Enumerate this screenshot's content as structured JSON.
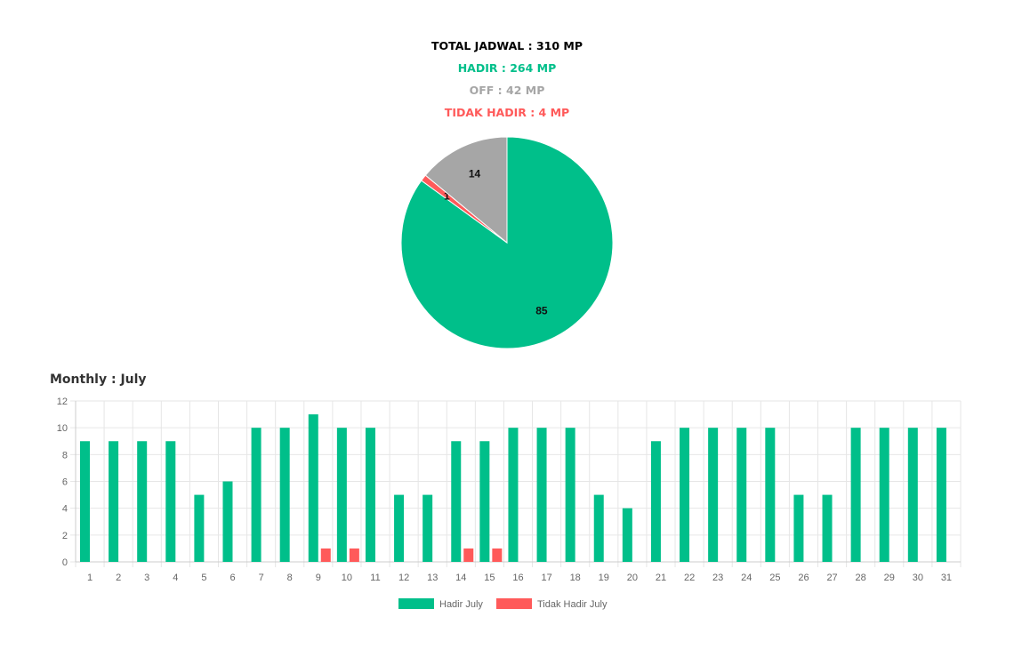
{
  "summary": {
    "total_label": "TOTAL JADWAL : 310 MP",
    "hadir_label": "HADIR : 264 MP",
    "off_label": "OFF : 42 MP",
    "tidak_hadir_label": "TIDAK HADIR : 4 MP"
  },
  "colors": {
    "hadir": "#00bf8a",
    "off": "#a6a6a6",
    "tidak_hadir": "#ff5a5a",
    "total": "#000000",
    "grid": "#e6e6e6",
    "axis_text": "#666666"
  },
  "monthly_title": "Monthly : July",
  "chart_data": [
    {
      "type": "pie",
      "slices": [
        {
          "key": "hadir",
          "value": 85,
          "label": "85"
        },
        {
          "key": "tidak_hadir",
          "value": 1,
          "label": "1"
        },
        {
          "key": "off",
          "value": 14,
          "label": "14"
        }
      ]
    },
    {
      "type": "bar",
      "categories": [
        "1",
        "2",
        "3",
        "4",
        "5",
        "6",
        "7",
        "8",
        "9",
        "10",
        "11",
        "12",
        "13",
        "14",
        "15",
        "16",
        "17",
        "18",
        "19",
        "20",
        "21",
        "22",
        "23",
        "24",
        "25",
        "26",
        "27",
        "28",
        "29",
        "30",
        "31"
      ],
      "series": [
        {
          "name": "Hadir July",
          "key": "hadir",
          "values": [
            9,
            9,
            9,
            9,
            5,
            6,
            10,
            10,
            11,
            10,
            10,
            5,
            5,
            9,
            9,
            10,
            10,
            10,
            5,
            4,
            9,
            10,
            10,
            10,
            10,
            5,
            5,
            10,
            10,
            10,
            10
          ]
        },
        {
          "name": "Tidak Hadir July",
          "key": "tidak_hadir",
          "values": [
            0,
            0,
            0,
            0,
            0,
            0,
            0,
            0,
            1,
            1,
            0,
            0,
            0,
            1,
            1,
            0,
            0,
            0,
            0,
            0,
            0,
            0,
            0,
            0,
            0,
            0,
            0,
            0,
            0,
            0,
            0
          ]
        }
      ],
      "ylim": [
        0,
        12
      ],
      "yticks": [
        "0",
        "2",
        "4",
        "6",
        "8",
        "10",
        "12"
      ],
      "grid": true,
      "legend": "bottom"
    }
  ]
}
